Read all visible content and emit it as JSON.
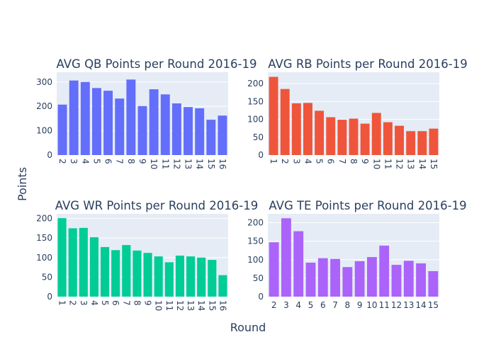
{
  "figure": {
    "xlabel": "Round",
    "ylabel": "Points",
    "plot_bg": "#e5ecf6",
    "grid_color": "#ffffff",
    "text_color": "#2a3f5f"
  },
  "chart_data": [
    {
      "type": "bar",
      "title": "AVG QB Points per Round 2016-19",
      "color": "#636efa",
      "categories": [
        "2",
        "3",
        "4",
        "5",
        "6",
        "7",
        "8",
        "9",
        "10",
        "11",
        "12",
        "13",
        "14",
        "15",
        "16"
      ],
      "values": [
        207,
        306,
        300,
        275,
        264,
        232,
        310,
        201,
        270,
        249,
        212,
        197,
        192,
        145,
        162
      ],
      "ylim": [
        0,
        340
      ],
      "yticks": [
        0,
        100,
        200,
        300
      ],
      "xtick_rotation": 90,
      "grid": true,
      "legend": false
    },
    {
      "type": "bar",
      "title": "AVG RB Points per Round 2016-19",
      "color": "#ef553b",
      "categories": [
        "1",
        "2",
        "3",
        "4",
        "5",
        "6",
        "7",
        "8",
        "9",
        "10",
        "11",
        "12",
        "13",
        "14",
        "15"
      ],
      "values": [
        219,
        185,
        145,
        146,
        124,
        106,
        99,
        102,
        88,
        118,
        92,
        82,
        67,
        67,
        74
      ],
      "ylim": [
        0,
        232
      ],
      "yticks": [
        0,
        50,
        100,
        150,
        200
      ],
      "xtick_rotation": 90,
      "grid": true,
      "legend": false
    },
    {
      "type": "bar",
      "title": "AVG WR Points per Round 2016-19",
      "color": "#00cc96",
      "categories": [
        "1",
        "2",
        "3",
        "4",
        "5",
        "6",
        "7",
        "8",
        "9",
        "10",
        "11",
        "12",
        "13",
        "14",
        "15",
        "16"
      ],
      "values": [
        201,
        175,
        176,
        152,
        127,
        119,
        132,
        118,
        112,
        103,
        88,
        105,
        103,
        100,
        94,
        55
      ],
      "ylim": [
        0,
        212
      ],
      "yticks": [
        0,
        50,
        100,
        150,
        200
      ],
      "xtick_rotation": 90,
      "grid": true,
      "legend": false
    },
    {
      "type": "bar",
      "title": "AVG TE Points per Round 2016-19",
      "color": "#ab63fa",
      "categories": [
        "2",
        "3",
        "4",
        "5",
        "6",
        "7",
        "8",
        "9",
        "10",
        "11",
        "12",
        "13",
        "14",
        "15"
      ],
      "values": [
        147,
        212,
        177,
        92,
        104,
        102,
        80,
        96,
        107,
        138,
        86,
        97,
        90,
        69
      ],
      "ylim": [
        0,
        224
      ],
      "yticks": [
        0,
        50,
        100,
        150,
        200
      ],
      "xtick_rotation": 0,
      "grid": true,
      "legend": false
    }
  ]
}
